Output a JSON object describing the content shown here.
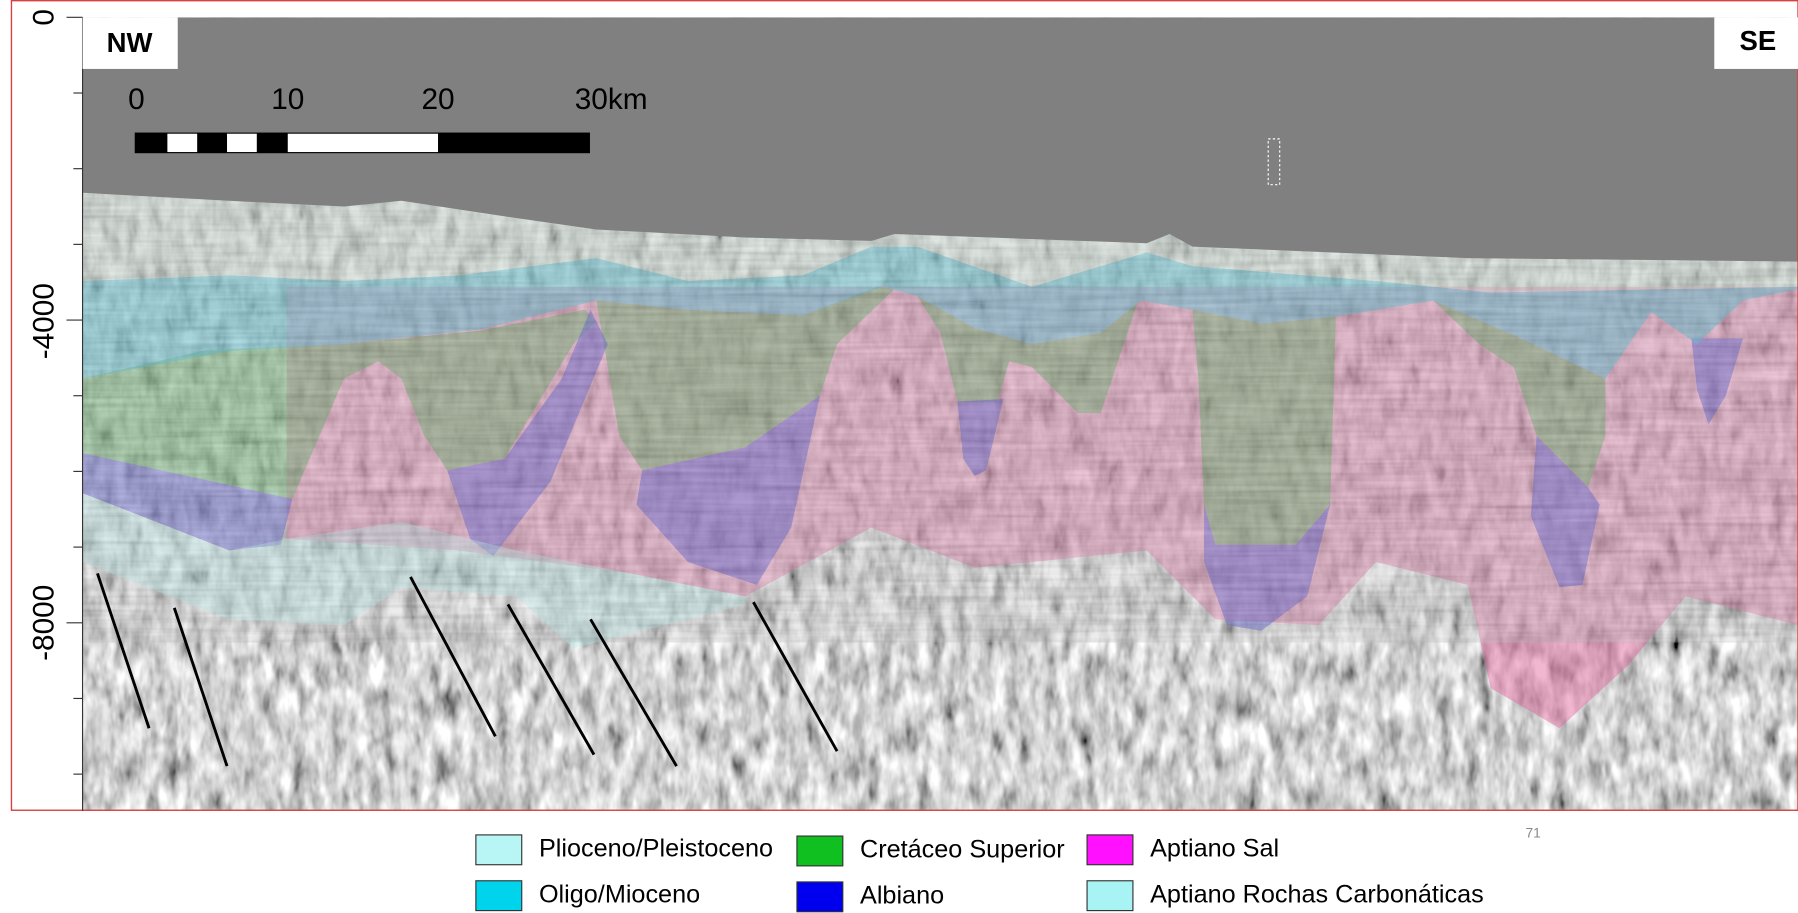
{
  "header": {
    "left": "NW",
    "right": "SE"
  },
  "axis": {
    "ticks": [
      "0",
      "-4000",
      "-8000"
    ]
  },
  "scale_bar": {
    "labels": [
      "0",
      "10",
      "20",
      "30km"
    ]
  },
  "legend": {
    "items": [
      "Plioceno/Pleistoceno",
      "Oligo/Mioceno",
      "Cretáceo Superior",
      "Albiano",
      "Aptiano Sal",
      "Aptiano Rochas Carbonáticas"
    ]
  },
  "page_number": "71"
}
